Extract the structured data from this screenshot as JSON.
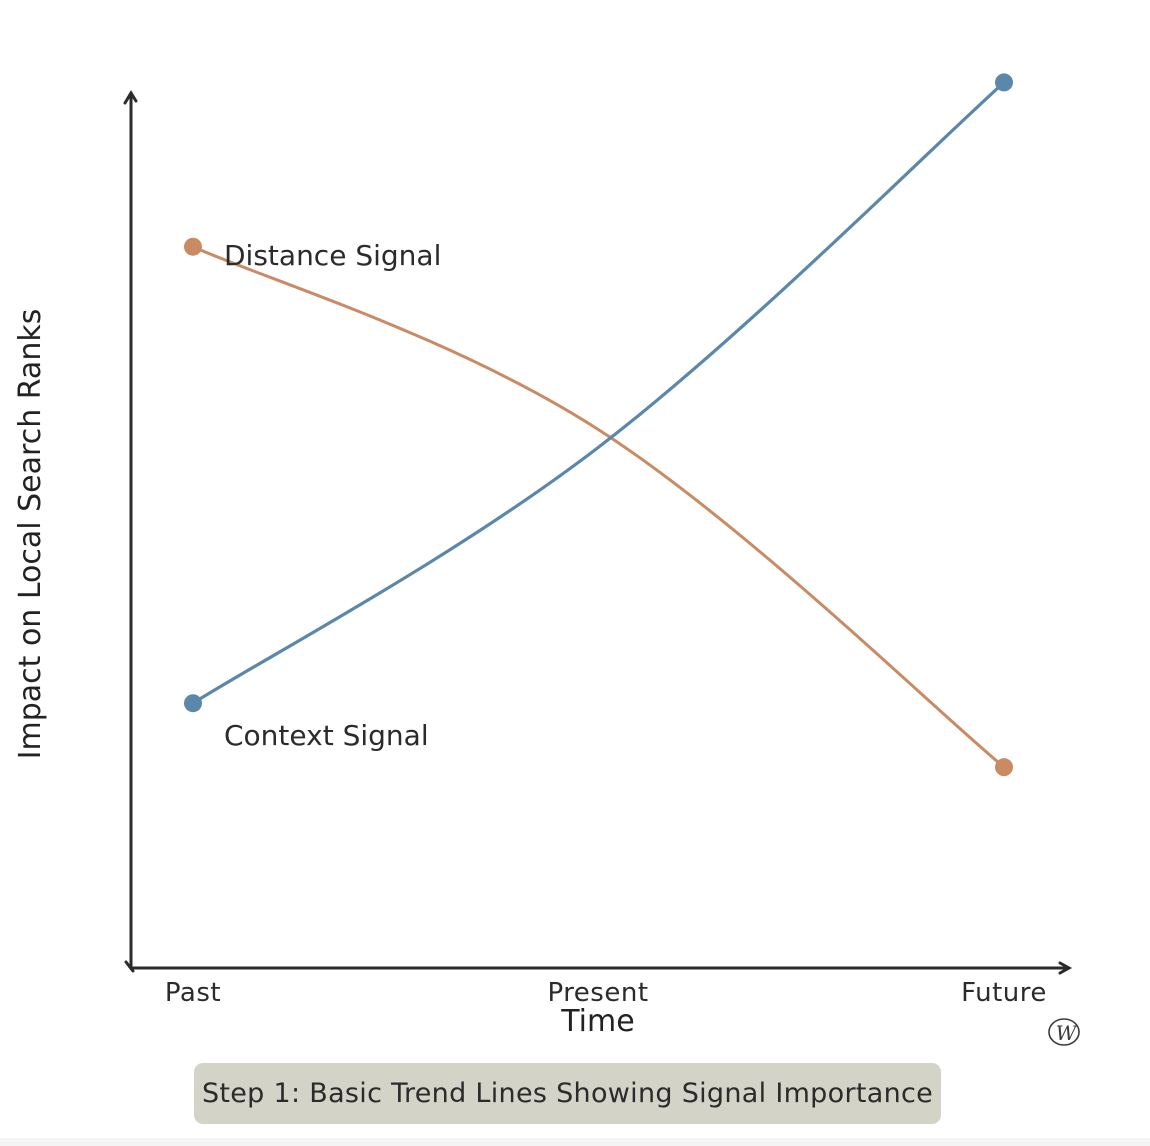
{
  "chart_data": {
    "type": "line",
    "title": "",
    "xlabel": "Time",
    "ylabel": "Impact on Local Search Ranks",
    "categories": [
      "Past",
      "Present",
      "Future"
    ],
    "ylim": [
      0,
      10
    ],
    "grid": false,
    "legend": "none",
    "series": [
      {
        "name": "Distance Signal",
        "color": "#c98a64",
        "values": [
          7.9,
          5.9,
          2.2
        ]
      },
      {
        "name": "Context Signal",
        "color": "#5b87aa",
        "values": [
          2.9,
          5.7,
          9.7
        ]
      }
    ],
    "caption": "Step 1: Basic Trend Lines Showing Signal Importance",
    "signature": "W"
  }
}
